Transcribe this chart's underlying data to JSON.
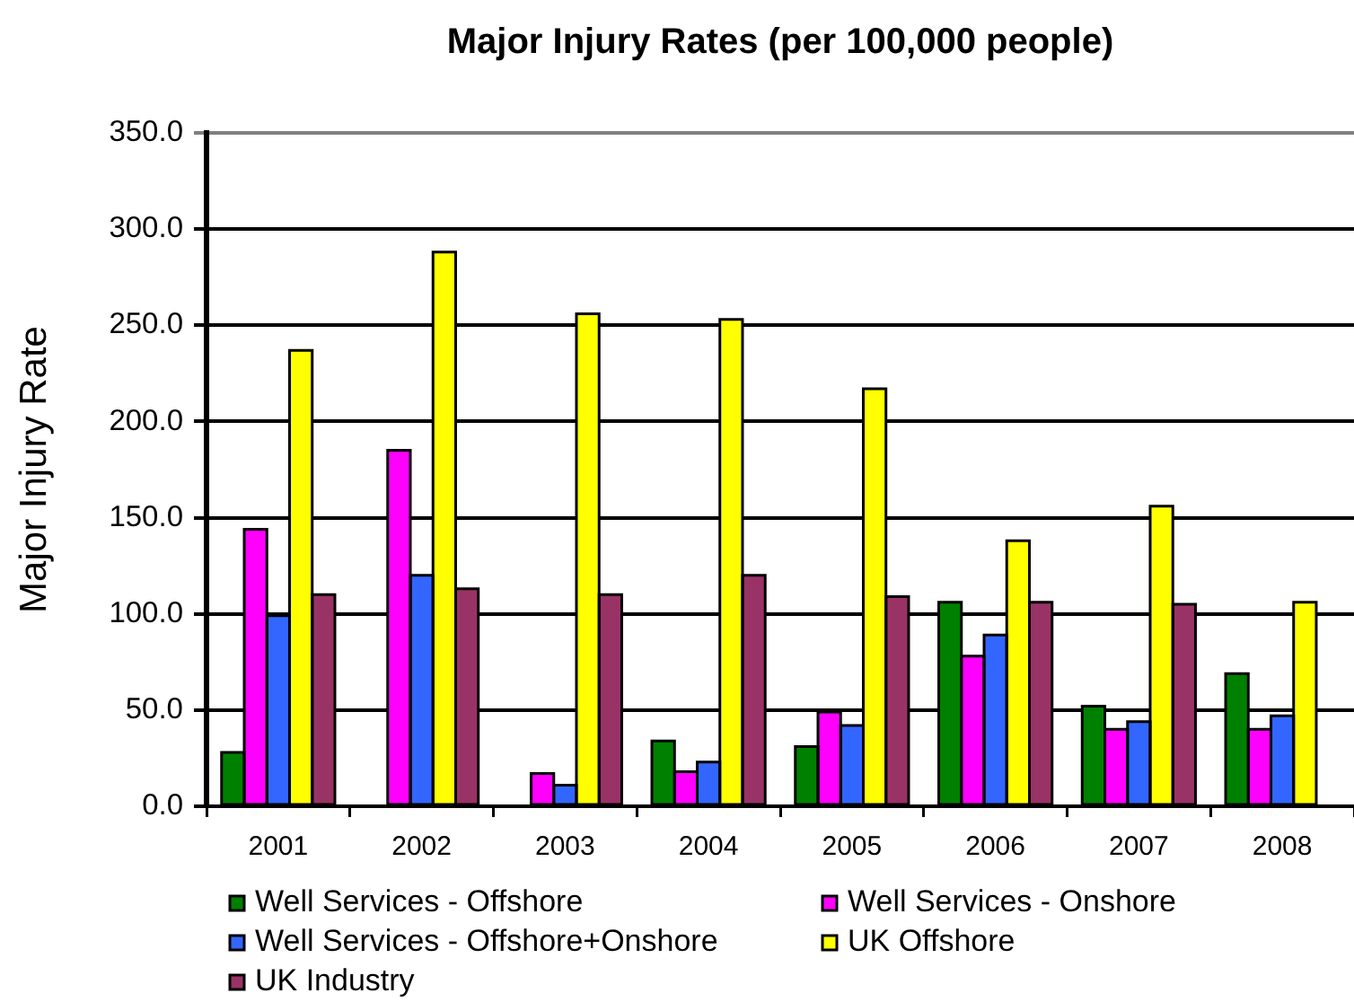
{
  "chart_data": {
    "type": "bar",
    "title": "Major Injury Rates (per 100,000 people)",
    "ylabel": "Major Injury Rate",
    "categories": [
      "2001",
      "2002",
      "2003",
      "2004",
      "2005",
      "2006",
      "2007",
      "2008"
    ],
    "series": [
      {
        "name": "Well Services - Offshore",
        "color": "#008000",
        "values": [
          28,
          null,
          null,
          34,
          31,
          106,
          52,
          69
        ]
      },
      {
        "name": "Well Services - Onshore",
        "color": "#ff00ff",
        "values": [
          144,
          185,
          17,
          18,
          49,
          78,
          40,
          40
        ]
      },
      {
        "name": "Well Services - Offshore+Onshore",
        "color": "#3366ff",
        "values": [
          99,
          120,
          11,
          23,
          42,
          89,
          44,
          47
        ]
      },
      {
        "name": "UK Offshore",
        "color": "#ffff00",
        "values": [
          237,
          288,
          256,
          253,
          217,
          138,
          156,
          106
        ]
      },
      {
        "name": "UK Industry",
        "color": "#993366",
        "values": [
          110,
          113,
          110,
          120,
          109,
          106,
          105,
          null
        ]
      }
    ],
    "ylim": [
      0,
      350
    ],
    "yticks": [
      {
        "value": 0,
        "label": "0.0"
      },
      {
        "value": 50,
        "label": "50.0"
      },
      {
        "value": 100,
        "label": "100.0"
      },
      {
        "value": 150,
        "label": "150.0"
      },
      {
        "value": 200,
        "label": "200.0"
      },
      {
        "value": 250,
        "label": "250.0"
      },
      {
        "value": 300,
        "label": "300.0"
      },
      {
        "value": 350,
        "label": "350.0"
      }
    ],
    "grid": "y",
    "legend": "bottom"
  }
}
